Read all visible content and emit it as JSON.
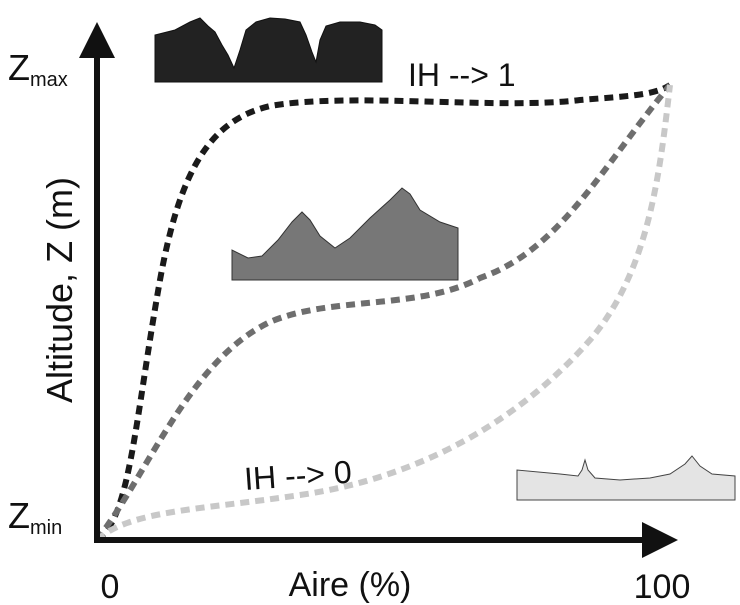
{
  "axes": {
    "y_label": "Altitude, Z (m)",
    "x_label": "Aire (%)",
    "y_top": {
      "main": "Z",
      "sub": "max"
    },
    "y_bottom": {
      "main": "Z",
      "sub": "min"
    },
    "x_start": "0",
    "x_end": "100"
  },
  "annotations": {
    "high": "IH --> 1",
    "low": "IH --> 0"
  }
}
